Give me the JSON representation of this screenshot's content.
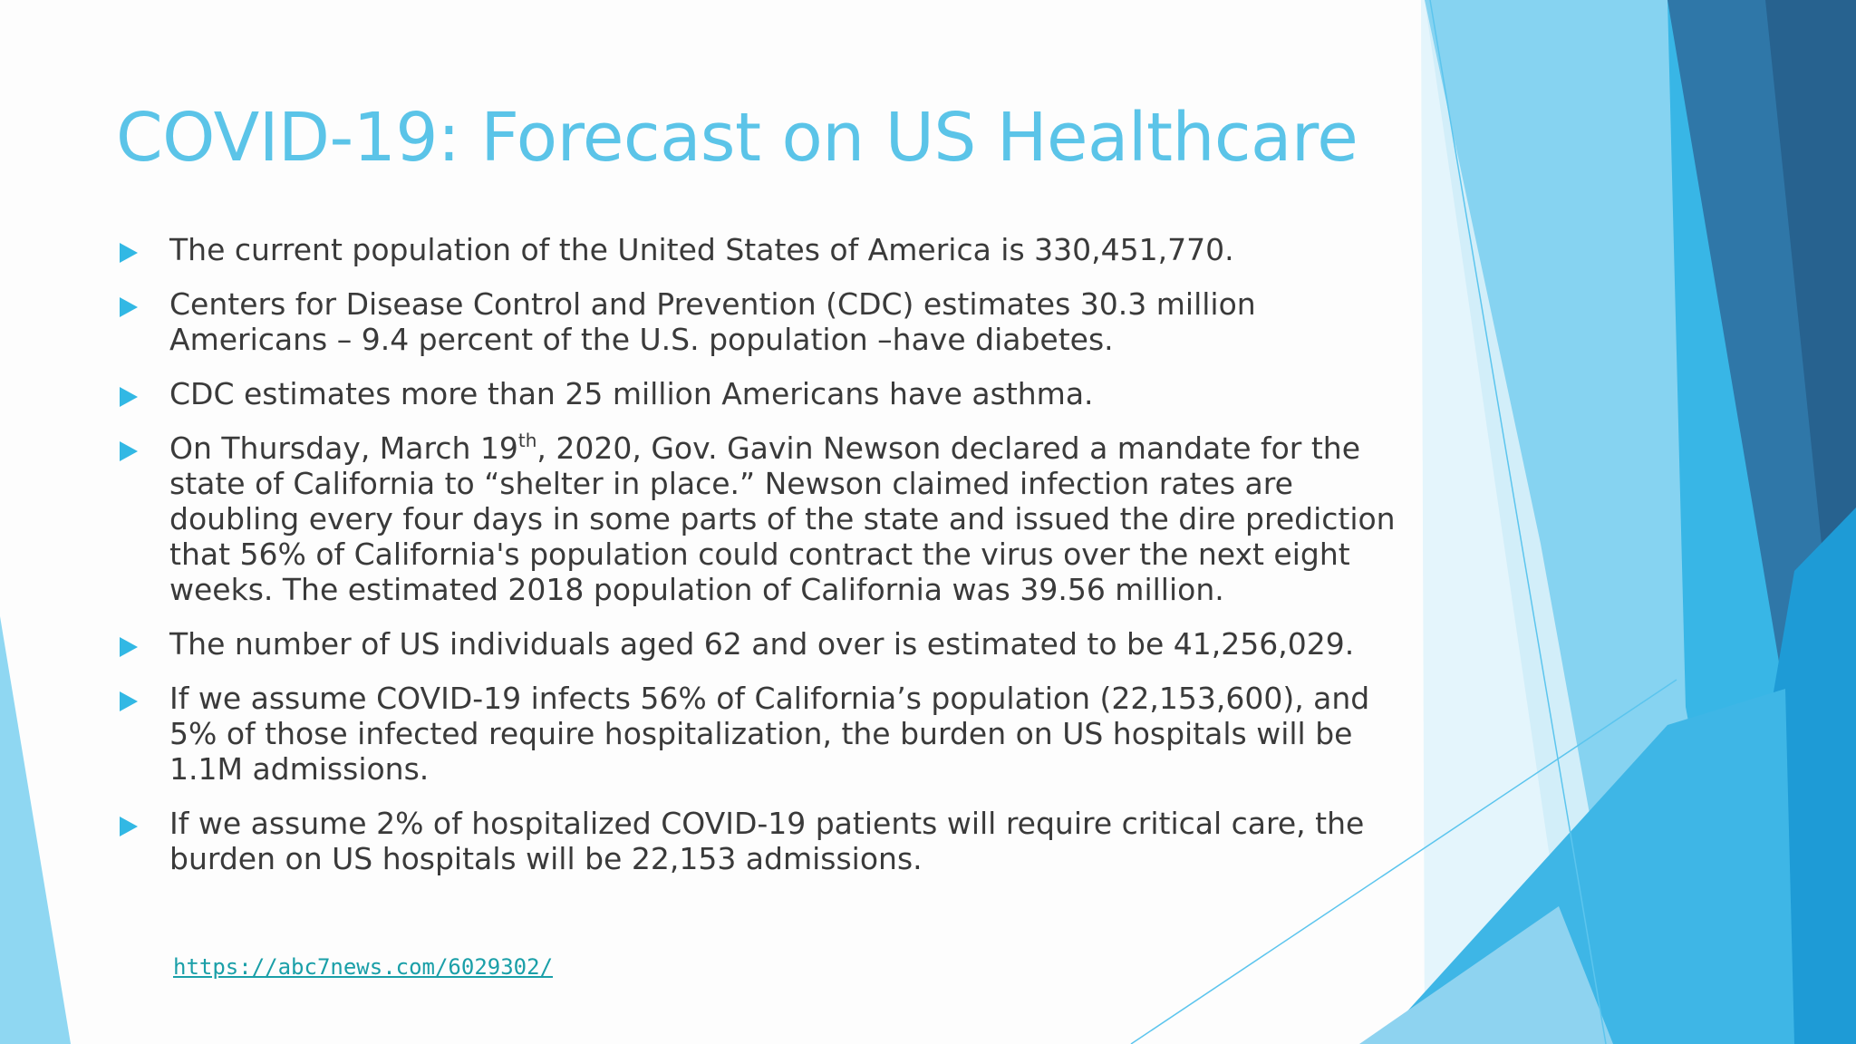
{
  "slide": {
    "title": "COVID-19: Forecast on US Healthcare",
    "bullets": [
      {
        "text": "The current population of the United States of America is 330,451,770."
      },
      {
        "text": "Centers for Disease Control and Prevention (CDC) estimates 30.3 million Americans – 9.4 percent of the U.S. population –have diabetes."
      },
      {
        "text": "CDC estimates more than 25 million Americans have asthma."
      },
      {
        "text_before": "On Thursday, March 19",
        "superscript": "th",
        "text_after": ", 2020, Gov. Gavin Newson declared a mandate for the state of California to “shelter in place.” Newson claimed infection rates are doubling every four days in some parts of the state and issued the dire prediction that 56% of California's population could contract the virus over the next eight weeks. The estimated 2018 population of California was 39.56 million."
      },
      {
        "text": "The number of US individuals aged 62 and over is estimated to be 41,256,029."
      },
      {
        "text": "If we assume COVID-19 infects 56% of California’s population (22,153,600), and 5% of those infected require hospitalization, the burden on US hospitals will be 1.1M admissions."
      },
      {
        "text": "If we assume 2% of hospitalized COVID-19 patients will require critical care, the burden on US hospitals will be 22,153 admissions."
      }
    ],
    "source_link": "https://abc7news.com/6029302/",
    "bullet_icon": "triangle-right-icon"
  },
  "colors": {
    "title": "#5BC4E8",
    "bullet_marker": "#32B8E4",
    "body_text": "#3a3a3a",
    "link": "#1A9FA8",
    "decor_light": "#C9EAF7",
    "decor_mid": "#5CC5EE",
    "decor_deep": "#2E6E9E"
  }
}
